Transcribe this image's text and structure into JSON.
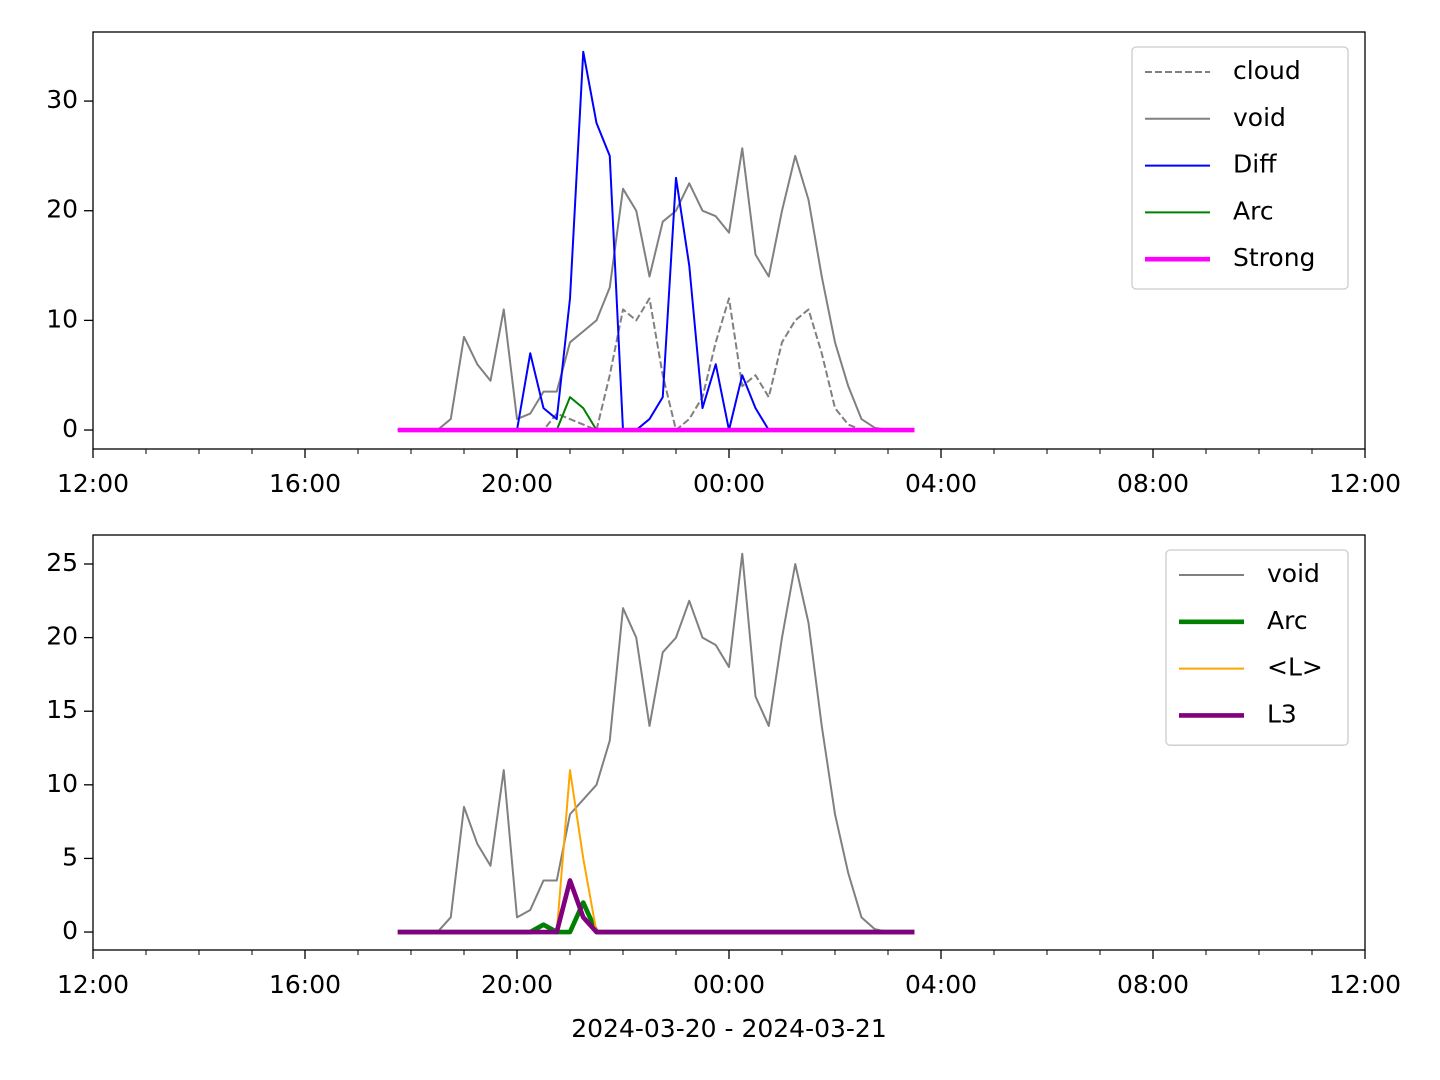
{
  "chart_data": [
    {
      "type": "line",
      "x": [
        "2024-03-20T17:45",
        "2024-03-20T18:00",
        "2024-03-20T18:15",
        "2024-03-20T18:30",
        "2024-03-20T18:45",
        "2024-03-20T19:00",
        "2024-03-20T19:15",
        "2024-03-20T19:30",
        "2024-03-20T19:45",
        "2024-03-20T20:00",
        "2024-03-20T20:15",
        "2024-03-20T20:30",
        "2024-03-20T20:45",
        "2024-03-20T21:00",
        "2024-03-20T21:15",
        "2024-03-20T21:30",
        "2024-03-20T21:45",
        "2024-03-20T22:00",
        "2024-03-20T22:15",
        "2024-03-20T22:30",
        "2024-03-20T22:45",
        "2024-03-20T23:00",
        "2024-03-20T23:15",
        "2024-03-20T23:30",
        "2024-03-20T23:45",
        "2024-03-21T00:00",
        "2024-03-21T00:15",
        "2024-03-21T00:30",
        "2024-03-21T00:45",
        "2024-03-21T01:00",
        "2024-03-21T01:15",
        "2024-03-21T01:30",
        "2024-03-21T01:45",
        "2024-03-21T02:00",
        "2024-03-21T02:15",
        "2024-03-21T02:30",
        "2024-03-21T02:45",
        "2024-03-21T03:00",
        "2024-03-21T03:15",
        "2024-03-21T03:30"
      ],
      "series": [
        {
          "name": "cloud",
          "color": "#808080",
          "width": 1.5,
          "dashed": true,
          "values": [
            0,
            0,
            0,
            0,
            0,
            0,
            0,
            0,
            0,
            0,
            0,
            0,
            1.5,
            1,
            0.5,
            0,
            5,
            11,
            10,
            12,
            5,
            0,
            1,
            3,
            8,
            12,
            4,
            5,
            3,
            8,
            10,
            11,
            7,
            2,
            0.5,
            0,
            0,
            0,
            0,
            0
          ]
        },
        {
          "name": "void",
          "color": "#808080",
          "width": 1.5,
          "dashed": false,
          "values": [
            0,
            0,
            0,
            0,
            1,
            8.5,
            6,
            4.5,
            11,
            1,
            1.5,
            3.5,
            3.5,
            8,
            9,
            10,
            13,
            22,
            20,
            14,
            19,
            20,
            22.5,
            20,
            19.5,
            18,
            25.7,
            16,
            14,
            20,
            25,
            21,
            14,
            8,
            4,
            1,
            0.2,
            0,
            0,
            0
          ]
        },
        {
          "name": "Diff",
          "color": "#0000ff",
          "width": 1.5,
          "dashed": false,
          "values": [
            null,
            null,
            null,
            null,
            null,
            null,
            null,
            null,
            null,
            0,
            7,
            2,
            1,
            12,
            34.5,
            28,
            25,
            0,
            0,
            1,
            3,
            23,
            15,
            2,
            6,
            0,
            5,
            2,
            0,
            null,
            null,
            null,
            null,
            null,
            null,
            null,
            null,
            null,
            null,
            null
          ]
        },
        {
          "name": "Arc",
          "color": "#008000",
          "width": 1.5,
          "dashed": false,
          "values": [
            0,
            0,
            0,
            0,
            0,
            0,
            0,
            0,
            0,
            0,
            0,
            0,
            0,
            3,
            2,
            0,
            0,
            0,
            0,
            0,
            0,
            0,
            0,
            0,
            0,
            0,
            0,
            0,
            0,
            0,
            0,
            0,
            0,
            0,
            0,
            0,
            0,
            0,
            0,
            0
          ]
        },
        {
          "name": "Strong",
          "color": "#ff00ff",
          "width": 3.5,
          "dashed": false,
          "values": [
            0,
            0,
            0,
            0,
            0,
            0,
            0,
            0,
            0,
            0,
            0,
            0,
            0,
            0,
            0,
            0,
            0,
            0,
            0,
            0,
            0,
            0,
            0,
            0,
            0,
            0,
            0,
            0,
            0,
            0,
            0,
            0,
            0,
            0,
            0,
            0,
            0,
            0,
            0,
            0
          ]
        }
      ],
      "xlim": [
        "2024-03-20T12:00",
        "2024-03-21T12:00"
      ],
      "xticks": [
        {
          "value": "2024-03-20T12:00",
          "label": "12:00"
        },
        {
          "value": "2024-03-20T16:00",
          "label": "16:00"
        },
        {
          "value": "2024-03-20T20:00",
          "label": "20:00"
        },
        {
          "value": "2024-03-21T00:00",
          "label": "00:00"
        },
        {
          "value": "2024-03-21T04:00",
          "label": "04:00"
        },
        {
          "value": "2024-03-21T08:00",
          "label": "08:00"
        },
        {
          "value": "2024-03-21T12:00",
          "label": "12:00"
        }
      ],
      "xticks_minor": [
        "2024-03-20T13:00",
        "2024-03-20T14:00",
        "2024-03-20T15:00",
        "2024-03-20T17:00",
        "2024-03-20T18:00",
        "2024-03-20T19:00",
        "2024-03-20T21:00",
        "2024-03-20T22:00",
        "2024-03-20T23:00",
        "2024-03-21T01:00",
        "2024-03-21T02:00",
        "2024-03-21T03:00",
        "2024-03-21T05:00",
        "2024-03-21T06:00",
        "2024-03-21T07:00",
        "2024-03-21T09:00",
        "2024-03-21T10:00",
        "2024-03-21T11:00"
      ],
      "ylim": [
        -1.73,
        36.3
      ],
      "yticks": [
        0,
        10,
        20,
        30
      ],
      "legend": "upper right"
    },
    {
      "type": "line",
      "xlabel": "2024-03-20 - 2024-03-21",
      "x": [
        "2024-03-20T17:45",
        "2024-03-20T18:00",
        "2024-03-20T18:15",
        "2024-03-20T18:30",
        "2024-03-20T18:45",
        "2024-03-20T19:00",
        "2024-03-20T19:15",
        "2024-03-20T19:30",
        "2024-03-20T19:45",
        "2024-03-20T20:00",
        "2024-03-20T20:15",
        "2024-03-20T20:30",
        "2024-03-20T20:45",
        "2024-03-20T21:00",
        "2024-03-20T21:15",
        "2024-03-20T21:30",
        "2024-03-20T21:45",
        "2024-03-20T22:00",
        "2024-03-20T22:15",
        "2024-03-20T22:30",
        "2024-03-20T22:45",
        "2024-03-20T23:00",
        "2024-03-20T23:15",
        "2024-03-20T23:30",
        "2024-03-20T23:45",
        "2024-03-21T00:00",
        "2024-03-21T00:15",
        "2024-03-21T00:30",
        "2024-03-21T00:45",
        "2024-03-21T01:00",
        "2024-03-21T01:15",
        "2024-03-21T01:30",
        "2024-03-21T01:45",
        "2024-03-21T02:00",
        "2024-03-21T02:15",
        "2024-03-21T02:30",
        "2024-03-21T02:45",
        "2024-03-21T03:00",
        "2024-03-21T03:15",
        "2024-03-21T03:30"
      ],
      "series": [
        {
          "name": "void",
          "color": "#808080",
          "width": 1.5,
          "dashed": false,
          "values": [
            0,
            0,
            0,
            0,
            1,
            8.5,
            6,
            4.5,
            11,
            1,
            1.5,
            3.5,
            3.5,
            8,
            9,
            10,
            13,
            22,
            20,
            14,
            19,
            20,
            22.5,
            20,
            19.5,
            18,
            25.7,
            16,
            14,
            20,
            25,
            21,
            14,
            8,
            4,
            1,
            0.2,
            0,
            0,
            0
          ]
        },
        {
          "name": "Arc",
          "color": "#008000",
          "width": 3.5,
          "dashed": false,
          "values": [
            0,
            0,
            0,
            0,
            0,
            0,
            0,
            0,
            0,
            0,
            0,
            0.5,
            0,
            0,
            2,
            0,
            0,
            0,
            0,
            0,
            0,
            0,
            0,
            0,
            0,
            0,
            0,
            0,
            0,
            0,
            0,
            0,
            0,
            0,
            0,
            0,
            0,
            0,
            0,
            0
          ]
        },
        {
          "name": "<L>",
          "color": "#ffa500",
          "width": 1.5,
          "dashed": false,
          "values": [
            0,
            0,
            0,
            0,
            0,
            0,
            0,
            0,
            0,
            0,
            0,
            0,
            0,
            11,
            5,
            0,
            0,
            0,
            0,
            0,
            0,
            0,
            0,
            0,
            0,
            0,
            0,
            0,
            0,
            0,
            0,
            0,
            0,
            0,
            0,
            0,
            0,
            0,
            0,
            0
          ]
        },
        {
          "name": "L3",
          "color": "#800080",
          "width": 3.5,
          "dashed": false,
          "values": [
            0,
            0,
            0,
            0,
            0,
            0,
            0,
            0,
            0,
            0,
            0,
            0,
            0,
            3.5,
            1,
            0,
            0,
            0,
            0,
            0,
            0,
            0,
            0,
            0,
            0,
            0,
            0,
            0,
            0,
            0,
            0,
            0,
            0,
            0,
            0,
            0,
            0,
            0,
            0,
            0
          ]
        }
      ],
      "xlim": [
        "2024-03-20T12:00",
        "2024-03-21T12:00"
      ],
      "xticks": [
        {
          "value": "2024-03-20T12:00",
          "label": "12:00"
        },
        {
          "value": "2024-03-20T16:00",
          "label": "16:00"
        },
        {
          "value": "2024-03-20T20:00",
          "label": "20:00"
        },
        {
          "value": "2024-03-21T00:00",
          "label": "00:00"
        },
        {
          "value": "2024-03-21T04:00",
          "label": "04:00"
        },
        {
          "value": "2024-03-21T08:00",
          "label": "08:00"
        },
        {
          "value": "2024-03-21T12:00",
          "label": "12:00"
        }
      ],
      "xticks_minor": [
        "2024-03-20T13:00",
        "2024-03-20T14:00",
        "2024-03-20T15:00",
        "2024-03-20T17:00",
        "2024-03-20T18:00",
        "2024-03-20T19:00",
        "2024-03-20T21:00",
        "2024-03-20T22:00",
        "2024-03-20T23:00",
        "2024-03-21T01:00",
        "2024-03-21T02:00",
        "2024-03-21T03:00",
        "2024-03-21T05:00",
        "2024-03-21T06:00",
        "2024-03-21T07:00",
        "2024-03-21T09:00",
        "2024-03-21T10:00",
        "2024-03-21T11:00"
      ],
      "ylim": [
        -1.22,
        26.97
      ],
      "yticks": [
        0,
        5,
        10,
        15,
        20,
        25
      ],
      "legend": "upper right"
    }
  ]
}
